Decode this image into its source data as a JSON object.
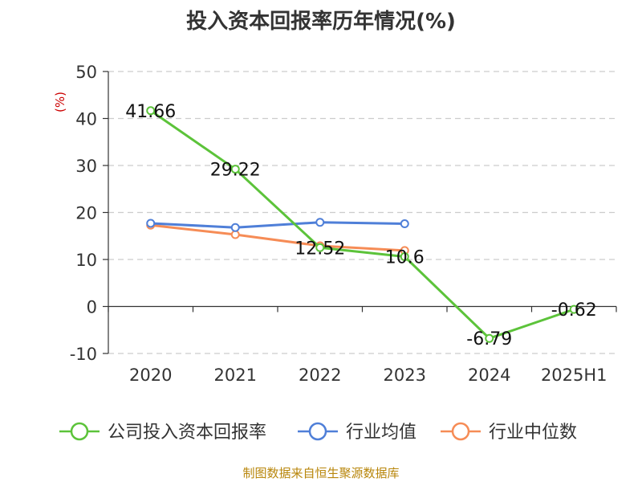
{
  "chart_data": {
    "type": "line",
    "title": "投入资本回报率历年情况(%)",
    "ylabel": "(%)",
    "categories": [
      "2020",
      "2021",
      "2022",
      "2023",
      "2024",
      "2025H1"
    ],
    "ylim": [
      -10,
      50
    ],
    "yticks": [
      50,
      40,
      30,
      20,
      10,
      0,
      -10
    ],
    "grid": true,
    "legend_position": "bottom",
    "series": [
      {
        "name": "公司投入资本回报率",
        "color": "#5cc33a",
        "values": [
          41.66,
          29.22,
          12.52,
          10.6,
          -6.79,
          -0.62
        ],
        "labels": [
          "41.66",
          "29.22",
          "12.52",
          "10.6",
          "-6.79",
          "-0.62"
        ]
      },
      {
        "name": "行业均值",
        "color": "#4f7fd8",
        "values": [
          17.7,
          16.8,
          17.9,
          17.6,
          null,
          null
        ]
      },
      {
        "name": "行业中位数",
        "color": "#f68c56",
        "values": [
          17.3,
          15.3,
          12.9,
          11.9,
          null,
          null
        ]
      }
    ]
  },
  "source": "制图数据来自恒生聚源数据库"
}
